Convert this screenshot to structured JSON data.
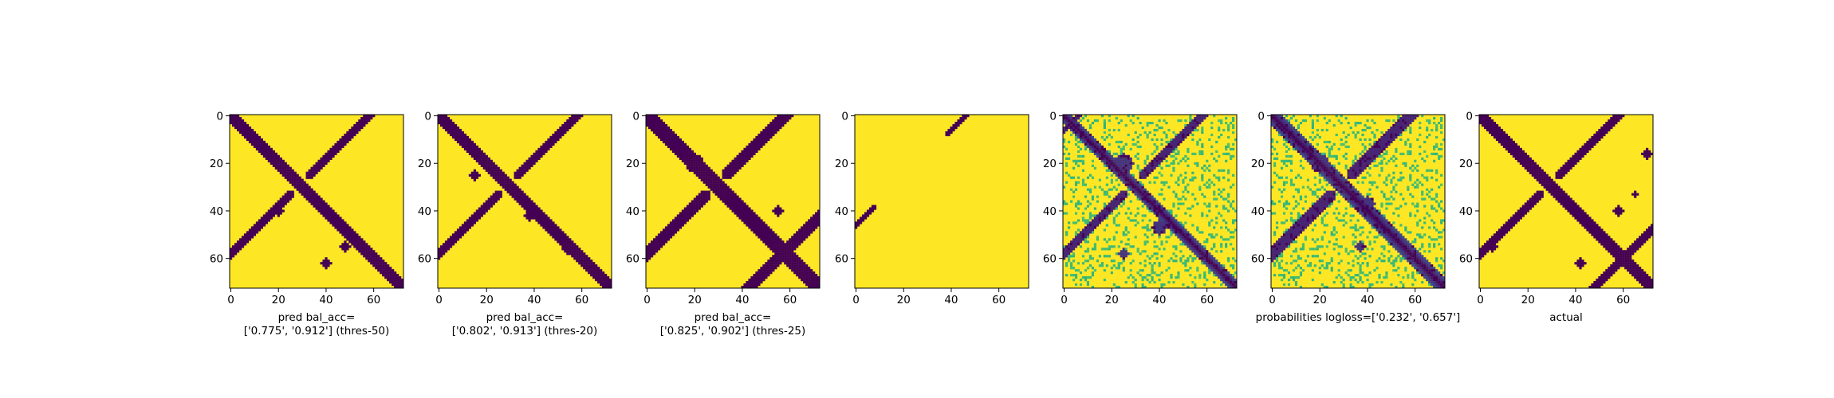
{
  "chart_data": [
    {
      "type": "heatmap",
      "kind": "binary",
      "xlabel": [
        "pred bal_acc=",
        "['0.775', '0.912'] (thres-50)"
      ],
      "xlim": [
        0,
        73
      ],
      "ylim": [
        73,
        0
      ],
      "xticks": [
        "0",
        "20",
        "40",
        "60"
      ],
      "yticks": [
        "0",
        "20",
        "40",
        "60"
      ],
      "colormap": "viridis",
      "low_color": "#440154",
      "high_color": "#fde725",
      "structure": {
        "diagonal_width": 3,
        "bands": [
          [
            18,
            40,
            2
          ]
        ],
        "blobs": [
          [
            40,
            20,
            2
          ],
          [
            62,
            40,
            2
          ],
          [
            55,
            48,
            2
          ]
        ]
      }
    },
    {
      "type": "heatmap",
      "kind": "binary",
      "xlabel": [
        "pred bal_acc=",
        "['0.802', '0.913'] (thres-20)"
      ],
      "xlim": [
        0,
        73
      ],
      "ylim": [
        73,
        0
      ],
      "xticks": [
        "0",
        "20",
        "40",
        "60"
      ],
      "yticks": [
        "0",
        "20",
        "40",
        "60"
      ],
      "colormap": "viridis",
      "low_color": "#440154",
      "high_color": "#fde725",
      "structure": {
        "diagonal_width": 3,
        "bands": [
          [
            18,
            40,
            2
          ]
        ],
        "blobs": [
          [
            42,
            38,
            2
          ],
          [
            56,
            54,
            2
          ],
          [
            25,
            15,
            2
          ]
        ]
      }
    },
    {
      "type": "heatmap",
      "kind": "binary",
      "xlabel": [
        "pred bal_acc=",
        "['0.825', '0.902'] (thres-25)"
      ],
      "xlim": [
        0,
        73
      ],
      "ylim": [
        73,
        0
      ],
      "xticks": [
        "0",
        "20",
        "40",
        "60"
      ],
      "yticks": [
        "0",
        "20",
        "40",
        "60"
      ],
      "colormap": "viridis",
      "low_color": "#440154",
      "high_color": "#fde725",
      "structure": {
        "diagonal_width": 4,
        "bands": [
          [
            18,
            40,
            3
          ],
          [
            57,
            58,
            3
          ]
        ],
        "blobs": [
          [
            20,
            20,
            4
          ],
          [
            40,
            55,
            2
          ]
        ]
      }
    },
    {
      "type": "heatmap",
      "kind": "sparse",
      "xlabel": [],
      "xlim": [
        0,
        73
      ],
      "ylim": [
        73,
        0
      ],
      "xticks": [
        "0",
        "20",
        "40",
        "60"
      ],
      "yticks": [
        "0",
        "20",
        "40",
        "60"
      ],
      "colormap": "viridis",
      "low_color": "#440154",
      "high_color": "#fde725",
      "structure": {
        "diagonal_width": 0,
        "bands": [
          [
            0,
            46,
            1
          ]
        ],
        "blobs": []
      }
    },
    {
      "type": "heatmap",
      "kind": "probability",
      "xlabel": [],
      "xlim": [
        0,
        73
      ],
      "ylim": [
        73,
        0
      ],
      "xticks": [
        "0",
        "20",
        "40",
        "60"
      ],
      "yticks": [
        "0",
        "20",
        "40",
        "60"
      ],
      "colormap": "viridis",
      "low_color": "#440154",
      "high_color": "#fde725",
      "structure": {
        "diagonal_width": 3,
        "bands": [
          [
            18,
            40,
            2
          ],
          [
            3,
            3,
            1
          ]
        ],
        "blobs": [
          [
            47,
            40,
            3
          ],
          [
            58,
            25,
            2
          ],
          [
            20,
            25,
            4
          ]
        ]
      }
    },
    {
      "type": "heatmap",
      "kind": "probability",
      "xlabel": [
        "probabilities logloss=['0.232', '0.657']"
      ],
      "xlim": [
        0,
        73
      ],
      "ylim": [
        73,
        0
      ],
      "xticks": [
        "0",
        "20",
        "40",
        "60"
      ],
      "yticks": [
        "0",
        "20",
        "40",
        "60"
      ],
      "colormap": "viridis",
      "low_color": "#440154",
      "high_color": "#fde725",
      "structure": {
        "diagonal_width": 4,
        "bands": [
          [
            18,
            40,
            3
          ]
        ],
        "blobs": [
          [
            37,
            40,
            3
          ],
          [
            55,
            37,
            2
          ],
          [
            20,
            20,
            4
          ]
        ]
      }
    },
    {
      "type": "heatmap",
      "kind": "binary",
      "xlabel": [
        "actual"
      ],
      "xlim": [
        0,
        73
      ],
      "ylim": [
        73,
        0
      ],
      "xticks": [
        "0",
        "20",
        "40",
        "60"
      ],
      "yticks": [
        "0",
        "20",
        "40",
        "60"
      ],
      "colormap": "viridis",
      "low_color": "#440154",
      "high_color": "#fde725",
      "structure": {
        "diagonal_width": 3,
        "bands": [
          [
            18,
            40,
            2
          ],
          [
            62,
            58,
            2
          ]
        ],
        "blobs": [
          [
            16,
            70,
            2
          ],
          [
            62,
            42,
            2
          ],
          [
            40,
            58,
            2
          ],
          [
            55,
            5,
            2
          ],
          [
            33,
            65,
            1
          ],
          [
            65,
            65,
            1
          ]
        ]
      }
    }
  ]
}
